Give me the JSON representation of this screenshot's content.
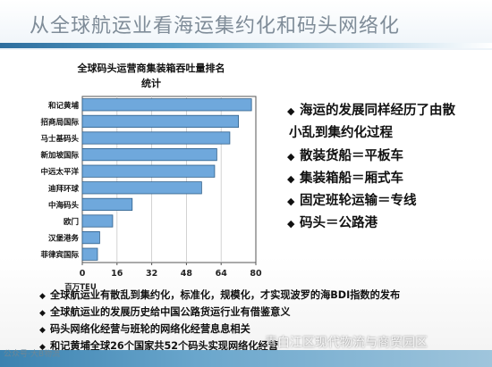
{
  "slide": {
    "title": "从全球航运业看海运集约化和码头网络化"
  },
  "chart_data": {
    "type": "bar",
    "orientation": "horizontal",
    "title_lines": [
      "全球码头运营商集装箱吞吐量排名",
      "统计"
    ],
    "xlabel": "百万TEU",
    "categories": [
      "和记黄埔",
      "招商局国际",
      "马士基码头",
      "新加坡国际",
      "中远太平洋",
      "迪拜环球",
      "中海码头",
      "欧门",
      "汉堡港务",
      "菲律宾国际"
    ],
    "values": [
      78,
      72,
      68,
      62,
      61,
      55,
      23,
      14,
      8,
      7
    ],
    "xlim": [
      0,
      80
    ],
    "xticks": [
      "0",
      "16",
      "32",
      "48",
      "64",
      "80"
    ],
    "bar_color": "#6fa8dc",
    "bar_edge": "#2f5f8a",
    "grid": true
  },
  "bullets": [
    "海运的发展同样经历了由散",
    "小乱到集约化过程",
    "散装货船＝平板车",
    "集装箱船＝厢式车",
    "固定班轮运输＝专线",
    "码头＝公路港"
  ],
  "bottom_notes": [
    "全球航运业有散乱到集约化，标准化，规模化，才实现波罗的海BDI指数的发布",
    "全球航运业的发展历史给中国公路货运行业有借鉴意义",
    "码头网络化经营与班轮的网络化经营息息相关",
    "和记黄埔全球26个国家共52个码头实现网络化经营"
  ],
  "watermark": {
    "logo_text": "公众号·大B物流",
    "text": "青白江区现代物流与商贸园区"
  },
  "colors": {
    "title": "#7f8c98",
    "band": "#3b82b0"
  }
}
